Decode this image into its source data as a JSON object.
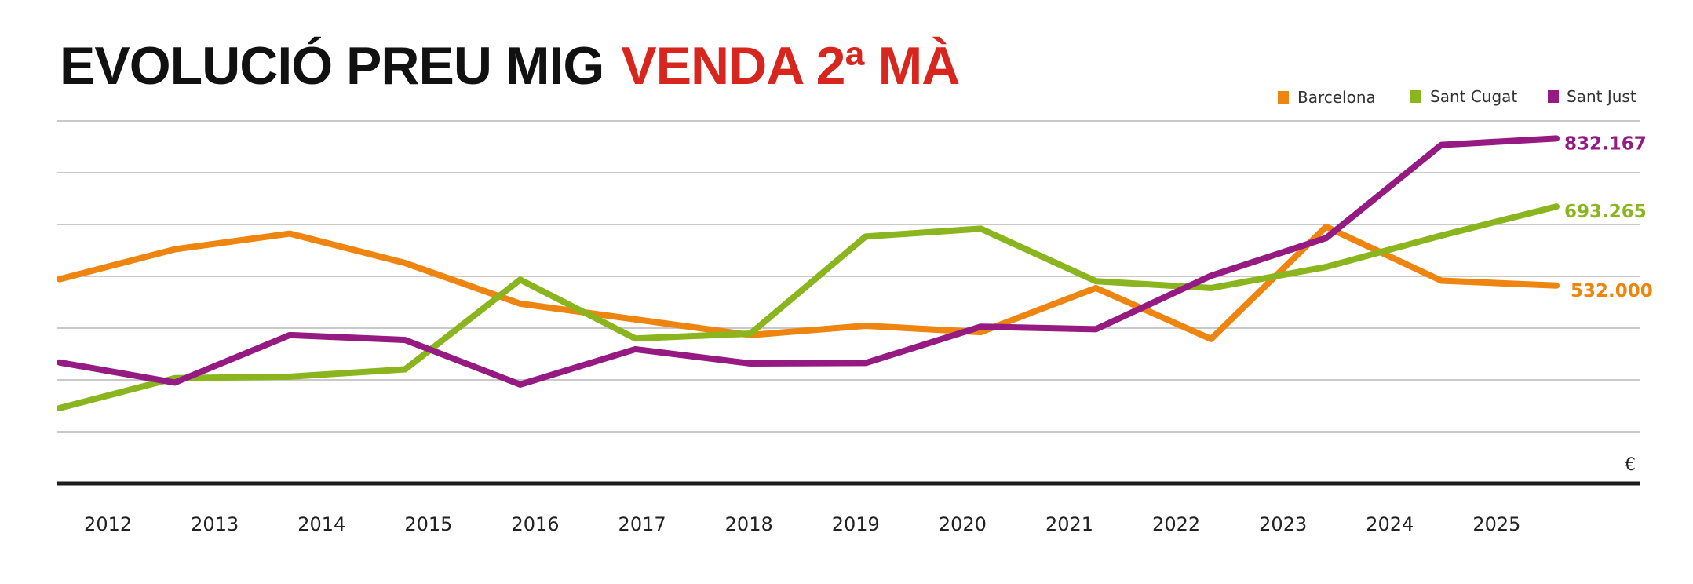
{
  "title": {
    "part1": "EVOLUCIÓ PREU MIG",
    "part2": "VENDA 2ª MÀ",
    "part1_color": "#111111",
    "part2_color": "#d7261e"
  },
  "chart_data": {
    "type": "line",
    "title": "EVOLUCIÓ PREU MIG VENDA 2ª MÀ",
    "x": [
      "2012",
      "2013",
      "2014",
      "2015",
      "2016",
      "2017",
      "2018",
      "2019",
      "2020",
      "2021",
      "2022",
      "2023",
      "2024",
      "2025"
    ],
    "unit_label": "€",
    "ylim": [
      128000,
      868000
    ],
    "grid": true,
    "legend_position": "top-right",
    "series": [
      {
        "name": "Barcelona",
        "color": "#ee8510",
        "end_label": "532.000",
        "values": [
          545000,
          606000,
          638000,
          578000,
          495000,
          463000,
          431000,
          450000,
          437000,
          527000,
          423000,
          652000,
          542000,
          532000
        ]
      },
      {
        "name": "Sant Cugat",
        "color": "#8ab51e",
        "end_label": "693.265",
        "values": [
          282000,
          343000,
          346000,
          361000,
          544000,
          424000,
          434000,
          632000,
          648000,
          541000,
          527000,
          570000,
          634000,
          693265
        ]
      },
      {
        "name": "Sant Just",
        "color": "#951a81",
        "end_label": "832.167",
        "values": [
          375000,
          334000,
          431000,
          421000,
          330000,
          402000,
          373000,
          374000,
          448000,
          443000,
          552000,
          629000,
          819000,
          832167
        ]
      }
    ]
  }
}
